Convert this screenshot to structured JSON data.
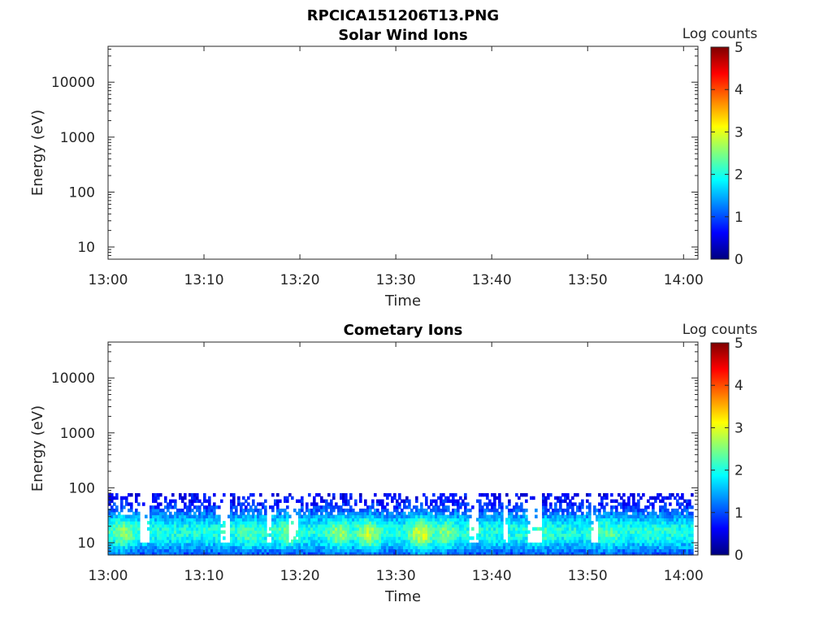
{
  "figure_title": "RPCICA151206T13.PNG",
  "colors": {
    "jet": [
      "#00007f",
      "#0000ff",
      "#007fff",
      "#00ffff",
      "#7fff7f",
      "#ffff00",
      "#ff7f00",
      "#ff0000",
      "#7f0000"
    ],
    "axis": "#262626"
  },
  "chart_data": [
    {
      "type": "heatmap",
      "title": "Solar Wind Ions",
      "xlabel": "Time",
      "ylabel": "Energy (eV)",
      "x_ticks": [
        "13:00",
        "13:10",
        "13:20",
        "13:30",
        "13:40",
        "13:50",
        "14:00"
      ],
      "x_range_minutes": [
        0,
        61.5
      ],
      "y_scale": "log",
      "y_ticks": [
        "10",
        "100",
        "1000",
        "10000"
      ],
      "y_tick_values": [
        10,
        100,
        1000,
        10000
      ],
      "ylim": [
        6,
        45000
      ],
      "colorbar": {
        "label": "Log counts",
        "ticks": [
          "0",
          "1",
          "2",
          "3",
          "4",
          "5"
        ],
        "range": [
          0,
          5
        ]
      },
      "data": "empty (no counts recorded)"
    },
    {
      "type": "heatmap",
      "title": "Cometary Ions",
      "xlabel": "Time",
      "ylabel": "Energy (eV)",
      "x_ticks": [
        "13:00",
        "13:10",
        "13:20",
        "13:30",
        "13:40",
        "13:50",
        "14:00"
      ],
      "x_range_minutes": [
        0,
        61.5
      ],
      "y_scale": "log",
      "y_ticks": [
        "10",
        "100",
        "1000",
        "10000"
      ],
      "y_tick_values": [
        10,
        100,
        1000,
        10000
      ],
      "ylim": [
        6,
        45000
      ],
      "colorbar": {
        "label": "Log counts",
        "ticks": [
          "0",
          "1",
          "2",
          "3",
          "4",
          "5"
        ],
        "range": [
          0,
          5
        ]
      },
      "data_energy_range_eV": [
        6,
        80
      ],
      "typical_log_counts": [
        0.5,
        2.0
      ],
      "peak_log_counts": 3.0,
      "intensity_peaks": [
        {
          "time_min": 1.5,
          "log_counts": 2.6
        },
        {
          "time_min": 14.5,
          "log_counts": 2.3
        },
        {
          "time_min": 18.5,
          "log_counts": 2.4
        },
        {
          "time_min": 24,
          "log_counts": 2.6
        },
        {
          "time_min": 27,
          "log_counts": 2.8
        },
        {
          "time_min": 32.5,
          "log_counts": 3.0
        },
        {
          "time_min": 35,
          "log_counts": 2.5
        },
        {
          "time_min": 45,
          "log_counts": 2.2
        },
        {
          "time_min": 52,
          "log_counts": 2.3
        },
        {
          "time_min": 57,
          "log_counts": 2.1
        }
      ],
      "data_gaps_minutes": [
        [
          3.3,
          4.2
        ],
        [
          11.5,
          12.5
        ],
        [
          16.5,
          17.0
        ],
        [
          18.8,
          19.6
        ],
        [
          37.5,
          38.5
        ],
        [
          41.0,
          41.5
        ],
        [
          43.5,
          45.0
        ],
        [
          50.3,
          51.0
        ]
      ]
    }
  ]
}
